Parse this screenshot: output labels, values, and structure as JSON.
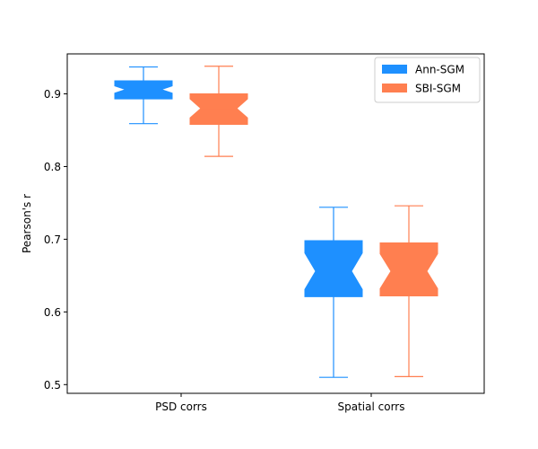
{
  "chart_data": {
    "type": "box",
    "title": "",
    "xlabel": "",
    "ylabel": "Pearson's r",
    "categories": [
      "PSD corrs",
      "Spatial corrs"
    ],
    "ylim": [
      0.488,
      0.955
    ],
    "yticks": [
      0.5,
      0.6,
      0.7,
      0.8,
      0.9
    ],
    "ytick_labels": [
      "0.5",
      "0.6",
      "0.7",
      "0.8",
      "0.9"
    ],
    "notched": true,
    "grid": false,
    "legend_position": "top-right",
    "series": [
      {
        "name": "Ann-SGM",
        "color": "#1e90ff",
        "boxes": [
          {
            "category": "PSD corrs",
            "whisker_low": 0.859,
            "q1": 0.893,
            "median": 0.906,
            "q3": 0.918,
            "whisker_high": 0.937,
            "notch_low": 0.901,
            "notch_high": 0.911
          },
          {
            "category": "Spatial corrs",
            "whisker_low": 0.51,
            "q1": 0.621,
            "median": 0.656,
            "q3": 0.698,
            "whisker_high": 0.744,
            "notch_low": 0.631,
            "notch_high": 0.681
          }
        ]
      },
      {
        "name": "SBI-SGM",
        "color": "#ff7f50",
        "boxes": [
          {
            "category": "PSD corrs",
            "whisker_low": 0.814,
            "q1": 0.858,
            "median": 0.88,
            "q3": 0.9,
            "whisker_high": 0.938,
            "notch_low": 0.867,
            "notch_high": 0.893
          },
          {
            "category": "Spatial corrs",
            "whisker_low": 0.511,
            "q1": 0.622,
            "median": 0.656,
            "q3": 0.695,
            "whisker_high": 0.746,
            "notch_low": 0.632,
            "notch_high": 0.68
          }
        ]
      }
    ]
  }
}
